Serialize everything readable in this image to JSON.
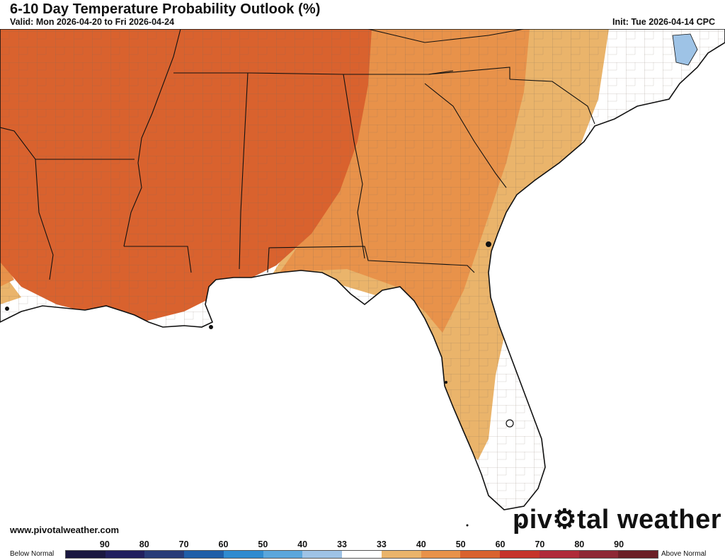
{
  "header": {
    "title": "6-10 Day Temperature Probability Outlook (%)",
    "valid": "Valid: Mon 2026-04-20 to Fri 2026-04-24",
    "init": "Init: Tue 2026-04-14 CPC"
  },
  "footer": {
    "website": "www.pivotalweather.com",
    "brand_prefix": "piv",
    "brand_suffix": "tal weather"
  },
  "legend": {
    "below_label": "Below Normal",
    "above_label": "Above Normal",
    "ticks": [
      "90",
      "80",
      "70",
      "60",
      "50",
      "40",
      "33",
      "33",
      "40",
      "50",
      "60",
      "70",
      "80",
      "90"
    ],
    "colors": [
      "#1a1740",
      "#211f5e",
      "#273b78",
      "#1f5ea8",
      "#2f8bd0",
      "#5aa6dc",
      "#9ec3e6",
      "#ffffff",
      "#eab46b",
      "#e8924a",
      "#d9622e",
      "#c6332b",
      "#b02a3a",
      "#8e2734",
      "#6b1f26"
    ]
  },
  "map": {
    "region": "Southeastern United States",
    "colors": {
      "above_60": "#d9622e",
      "above_50": "#e8924a",
      "above_40": "#eab46b",
      "below_40": "#9ec3e6",
      "land": "#ffffff",
      "water": "#ffffff",
      "border": "#111111",
      "county": "#7a6a5a"
    }
  }
}
